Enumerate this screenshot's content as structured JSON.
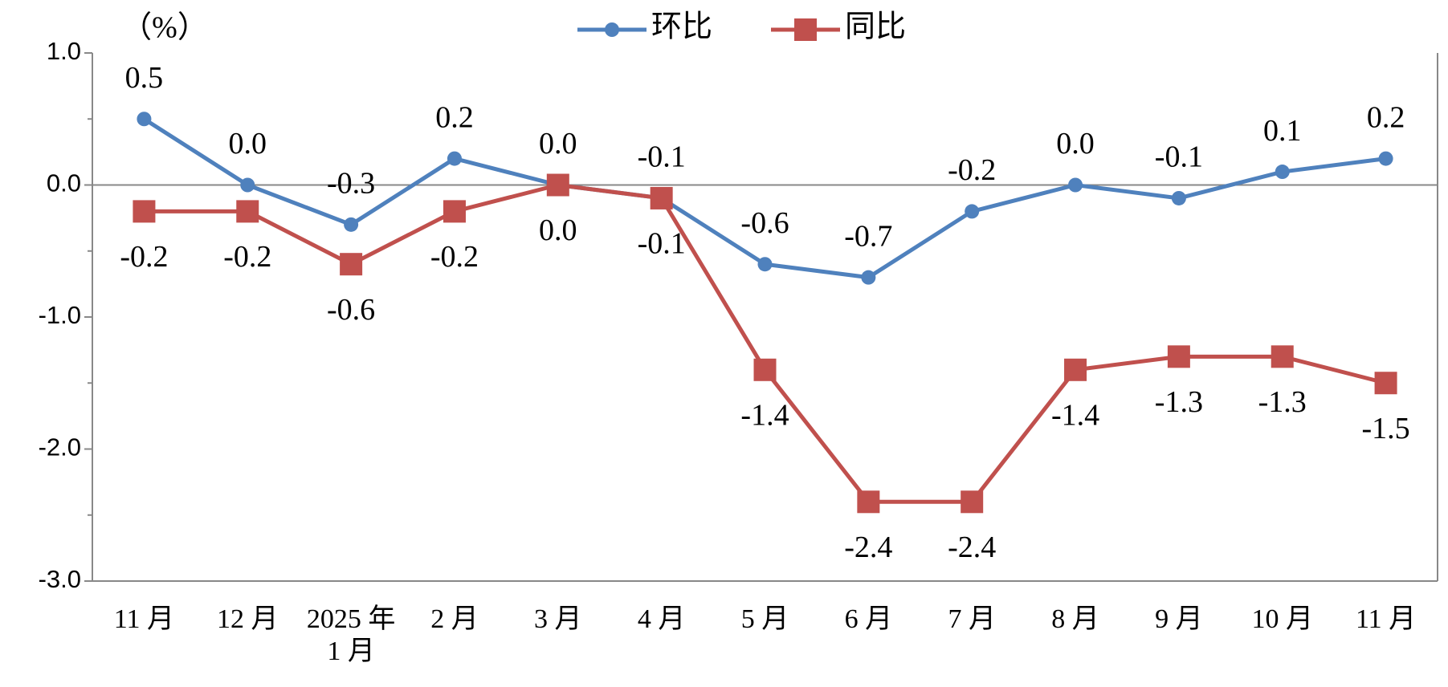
{
  "chart_data": {
    "type": "line",
    "y_label": "（%）",
    "categories": [
      "11 月",
      "12 月",
      "2025 年 1 月",
      "2 月",
      "3 月",
      "4 月",
      "5 月",
      "6 月",
      "7 月",
      "8 月",
      "9 月",
      "10 月",
      "11 月"
    ],
    "series": [
      {
        "name": "环比",
        "color": "#4f81bd",
        "marker": "circle",
        "values": [
          0.5,
          0.0,
          -0.3,
          0.2,
          0.0,
          -0.1,
          -0.6,
          -0.7,
          -0.2,
          0.0,
          -0.1,
          0.1,
          0.2
        ],
        "value_labels": [
          "0.5",
          "0.0",
          "-0.3",
          "0.2",
          "0.0",
          "-0.1",
          "-0.6",
          "-0.7",
          "-0.2",
          "0.0",
          "-0.1",
          "0.1",
          "0.2"
        ]
      },
      {
        "name": "同比",
        "color": "#c0504d",
        "marker": "square",
        "values": [
          -0.2,
          -0.2,
          -0.6,
          -0.2,
          0.0,
          -0.1,
          -1.4,
          -2.4,
          -2.4,
          -1.4,
          -1.3,
          -1.3,
          -1.5
        ],
        "value_labels": [
          "-0.2",
          "-0.2",
          "-0.6",
          "-0.2",
          "0.0",
          "-0.1",
          "-1.4",
          "-2.4",
          "-2.4",
          "-1.4",
          "-1.3",
          "-1.3",
          "-1.5"
        ]
      }
    ],
    "ylim": [
      -3,
      1
    ],
    "yticks": [
      {
        "value": 1,
        "label": "1.0"
      },
      {
        "value": 0,
        "label": "0.0"
      },
      {
        "value": -1,
        "label": "-1.0"
      },
      {
        "value": -2,
        "label": "-2.0"
      },
      {
        "value": -3,
        "label": "-3.0"
      }
    ],
    "minor_yticks": [
      0.5,
      -0.5,
      -1.5,
      -2.5
    ],
    "legend": "top"
  }
}
